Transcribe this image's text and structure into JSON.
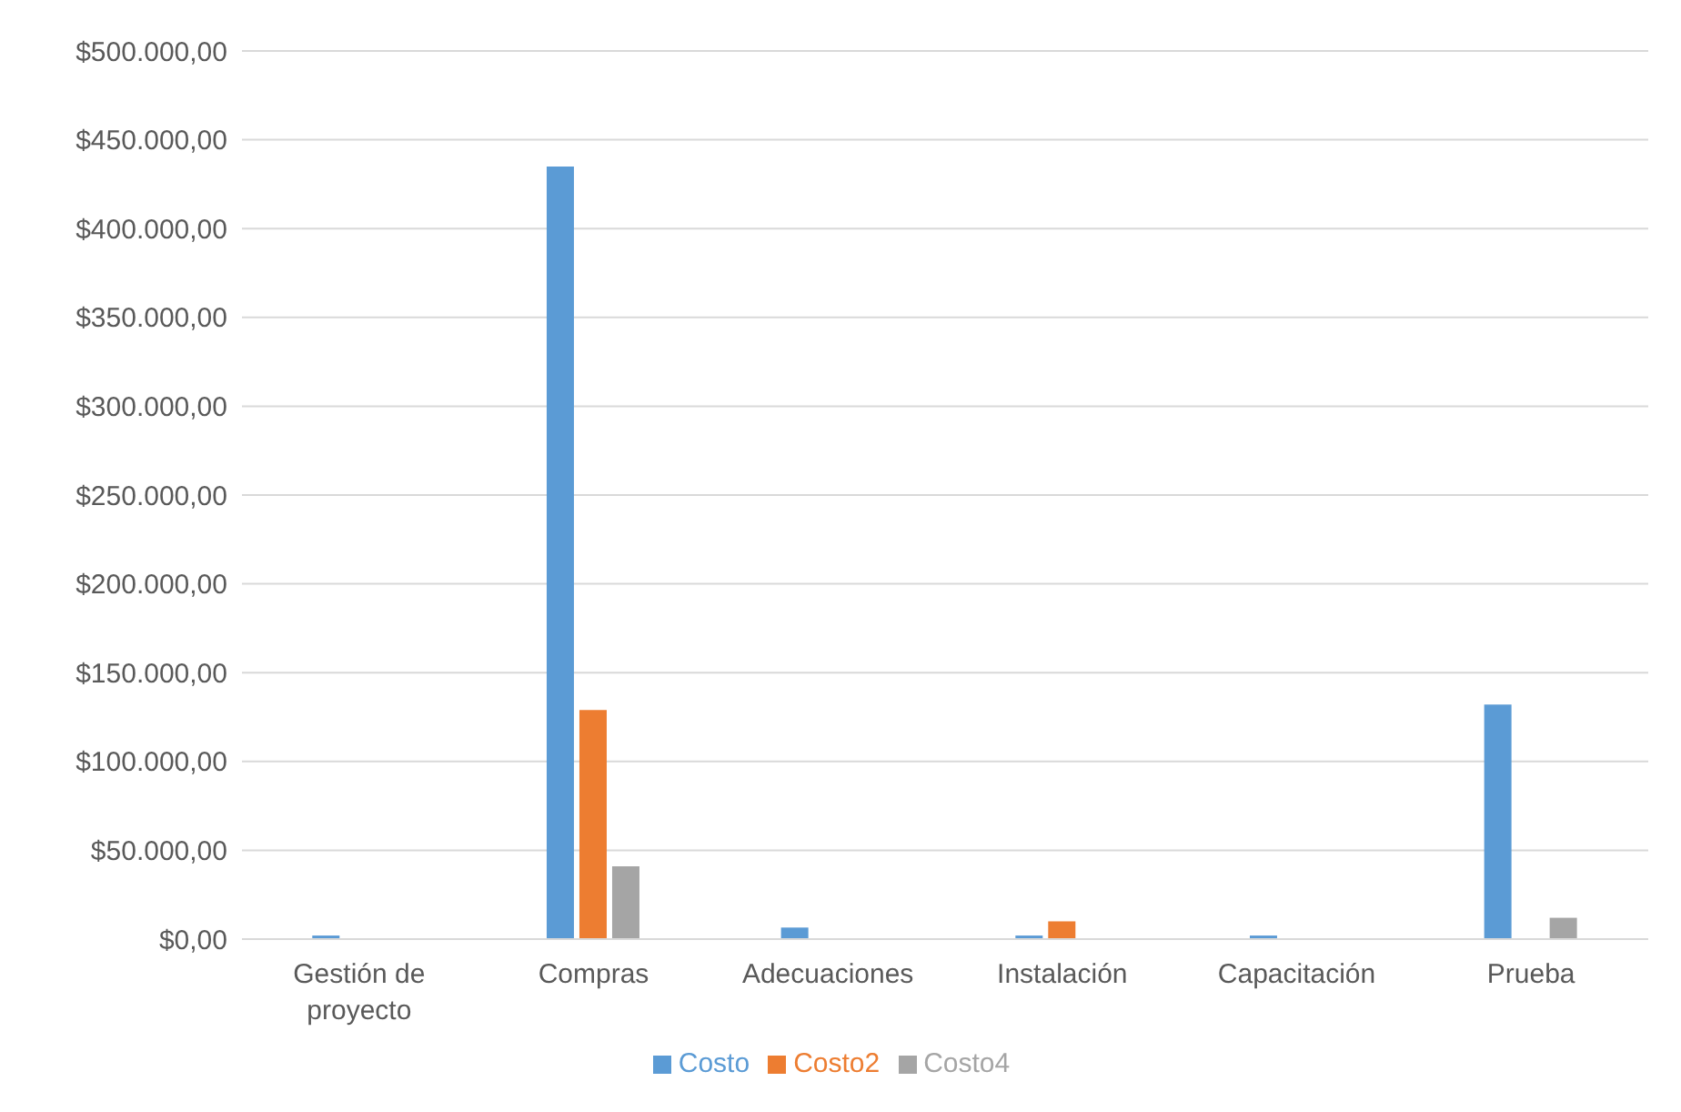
{
  "chart_data": {
    "type": "bar",
    "categories": [
      "Gestión de proyecto",
      "Compras",
      "Adecuaciones",
      "Instalación",
      "Capacitación",
      "Prueba"
    ],
    "series": [
      {
        "name": "Costo",
        "color": "#5b9bd5",
        "values": [
          2000,
          435000,
          6500,
          2000,
          2000,
          132000
        ]
      },
      {
        "name": "Costo2",
        "color": "#ed7d31",
        "values": [
          0,
          129000,
          0,
          10000,
          0,
          0
        ]
      },
      {
        "name": "Costo4",
        "color": "#a5a5a5",
        "values": [
          0,
          41000,
          0,
          0,
          0,
          12000
        ]
      }
    ],
    "ylim": [
      0,
      500000
    ],
    "yticks": [
      {
        "value": 0,
        "label": "$0,00"
      },
      {
        "value": 50000,
        "label": "$50.000,00"
      },
      {
        "value": 100000,
        "label": "$100.000,00"
      },
      {
        "value": 150000,
        "label": "$150.000,00"
      },
      {
        "value": 200000,
        "label": "$200.000,00"
      },
      {
        "value": 250000,
        "label": "$250.000,00"
      },
      {
        "value": 300000,
        "label": "$300.000,00"
      },
      {
        "value": 350000,
        "label": "$350.000,00"
      },
      {
        "value": 400000,
        "label": "$400.000,00"
      },
      {
        "value": 450000,
        "label": "$450.000,00"
      },
      {
        "value": 500000,
        "label": "$500.000,00"
      }
    ],
    "grid": "y",
    "legend": "bottom"
  }
}
